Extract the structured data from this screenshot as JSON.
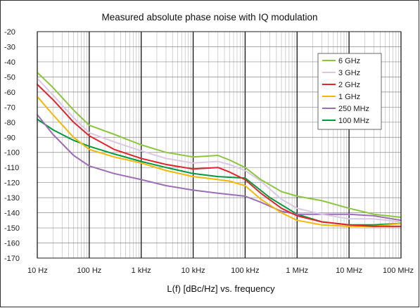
{
  "chart_data": {
    "type": "line",
    "title": "Measured absolute phase noise with IQ modulation",
    "xlabel": "L(f) [dBc/Hz] vs. frequency",
    "ylabel": "",
    "x_scale": "log",
    "xlim": [
      10,
      100000000
    ],
    "ylim": [
      -170,
      -20
    ],
    "grid": true,
    "legend_position": "top-right",
    "x_ticks": [
      {
        "value": 10,
        "label": "10 Hz"
      },
      {
        "value": 100,
        "label": "100 Hz"
      },
      {
        "value": 1000,
        "label": "1 kHz"
      },
      {
        "value": 10000,
        "label": "10 kHz"
      },
      {
        "value": 100000,
        "label": "100 kHz"
      },
      {
        "value": 1000000,
        "label": "1 MHz"
      },
      {
        "value": 10000000,
        "label": "10 MHz"
      },
      {
        "value": 100000000,
        "label": "100 MHz"
      }
    ],
    "y_ticks": [
      -20,
      -30,
      -40,
      -50,
      -60,
      -70,
      -80,
      -90,
      -100,
      -110,
      -120,
      -130,
      -140,
      -150,
      -160,
      -170
    ],
    "series": [
      {
        "name": "6 GHz",
        "color": "#8cc63f",
        "x": [
          10,
          20,
          50,
          100,
          300,
          1000,
          3000,
          10000,
          30000,
          50000,
          100000,
          200000,
          500000,
          1000000,
          3000000,
          10000000,
          30000000,
          100000000
        ],
        "y": [
          -47,
          -57,
          -72,
          -82,
          -88,
          -95,
          -100,
          -103,
          -102,
          -105,
          -110,
          -118,
          -126,
          -129,
          -132,
          -137,
          -141,
          -143
        ]
      },
      {
        "name": "3 GHz",
        "color": "#d9c9e4",
        "x": [
          10,
          20,
          50,
          100,
          300,
          1000,
          3000,
          10000,
          30000,
          50000,
          100000,
          200000,
          500000,
          1000000,
          3000000,
          10000000,
          30000000,
          100000000
        ],
        "y": [
          -51,
          -62,
          -77,
          -87,
          -93,
          -99,
          -104,
          -107,
          -106,
          -108,
          -112,
          -119,
          -131,
          -137,
          -141,
          -144,
          -144,
          -146
        ]
      },
      {
        "name": "2 GHz",
        "color": "#e3242b",
        "x": [
          10,
          20,
          50,
          100,
          300,
          1000,
          3000,
          10000,
          30000,
          50000,
          100000,
          200000,
          500000,
          1000000,
          3000000,
          10000000,
          30000000,
          100000000
        ],
        "y": [
          -55,
          -65,
          -80,
          -89,
          -98,
          -104,
          -108,
          -111,
          -110,
          -113,
          -118,
          -127,
          -137,
          -142,
          -146,
          -148,
          -149,
          -149
        ]
      },
      {
        "name": "1 GHz",
        "color": "#f5b800",
        "x": [
          10,
          20,
          50,
          100,
          300,
          1000,
          3000,
          10000,
          30000,
          50000,
          100000,
          200000,
          500000,
          1000000,
          3000000,
          10000000,
          30000000,
          100000000
        ],
        "y": [
          -63,
          -75,
          -90,
          -98,
          -103,
          -107,
          -112,
          -116,
          -118,
          -119,
          -122,
          -131,
          -140,
          -145,
          -148,
          -149,
          -149,
          -147
        ]
      },
      {
        "name": "250 MHz",
        "color": "#9b6fb6",
        "x": [
          10,
          20,
          50,
          100,
          300,
          1000,
          3000,
          10000,
          30000,
          100000,
          200000,
          500000,
          1000000,
          3000000,
          10000000,
          30000000,
          100000000
        ],
        "y": [
          -75,
          -88,
          -102,
          -109,
          -114,
          -118,
          -122,
          -125,
          -127,
          -129,
          -133,
          -139,
          -141,
          -141,
          -141,
          -142,
          -145
        ]
      },
      {
        "name": "100 MHz",
        "color": "#009a3e",
        "x": [
          10,
          20,
          50,
          100,
          300,
          1000,
          3000,
          10000,
          30000,
          100000,
          300000,
          1000000,
          3000000,
          10000000,
          30000000,
          100000000
        ],
        "y": [
          -78,
          -85,
          -92,
          -96,
          -101,
          -106,
          -110,
          -114,
          -116,
          -117,
          -130,
          -141,
          -146,
          -148,
          -148,
          -147
        ]
      }
    ]
  }
}
